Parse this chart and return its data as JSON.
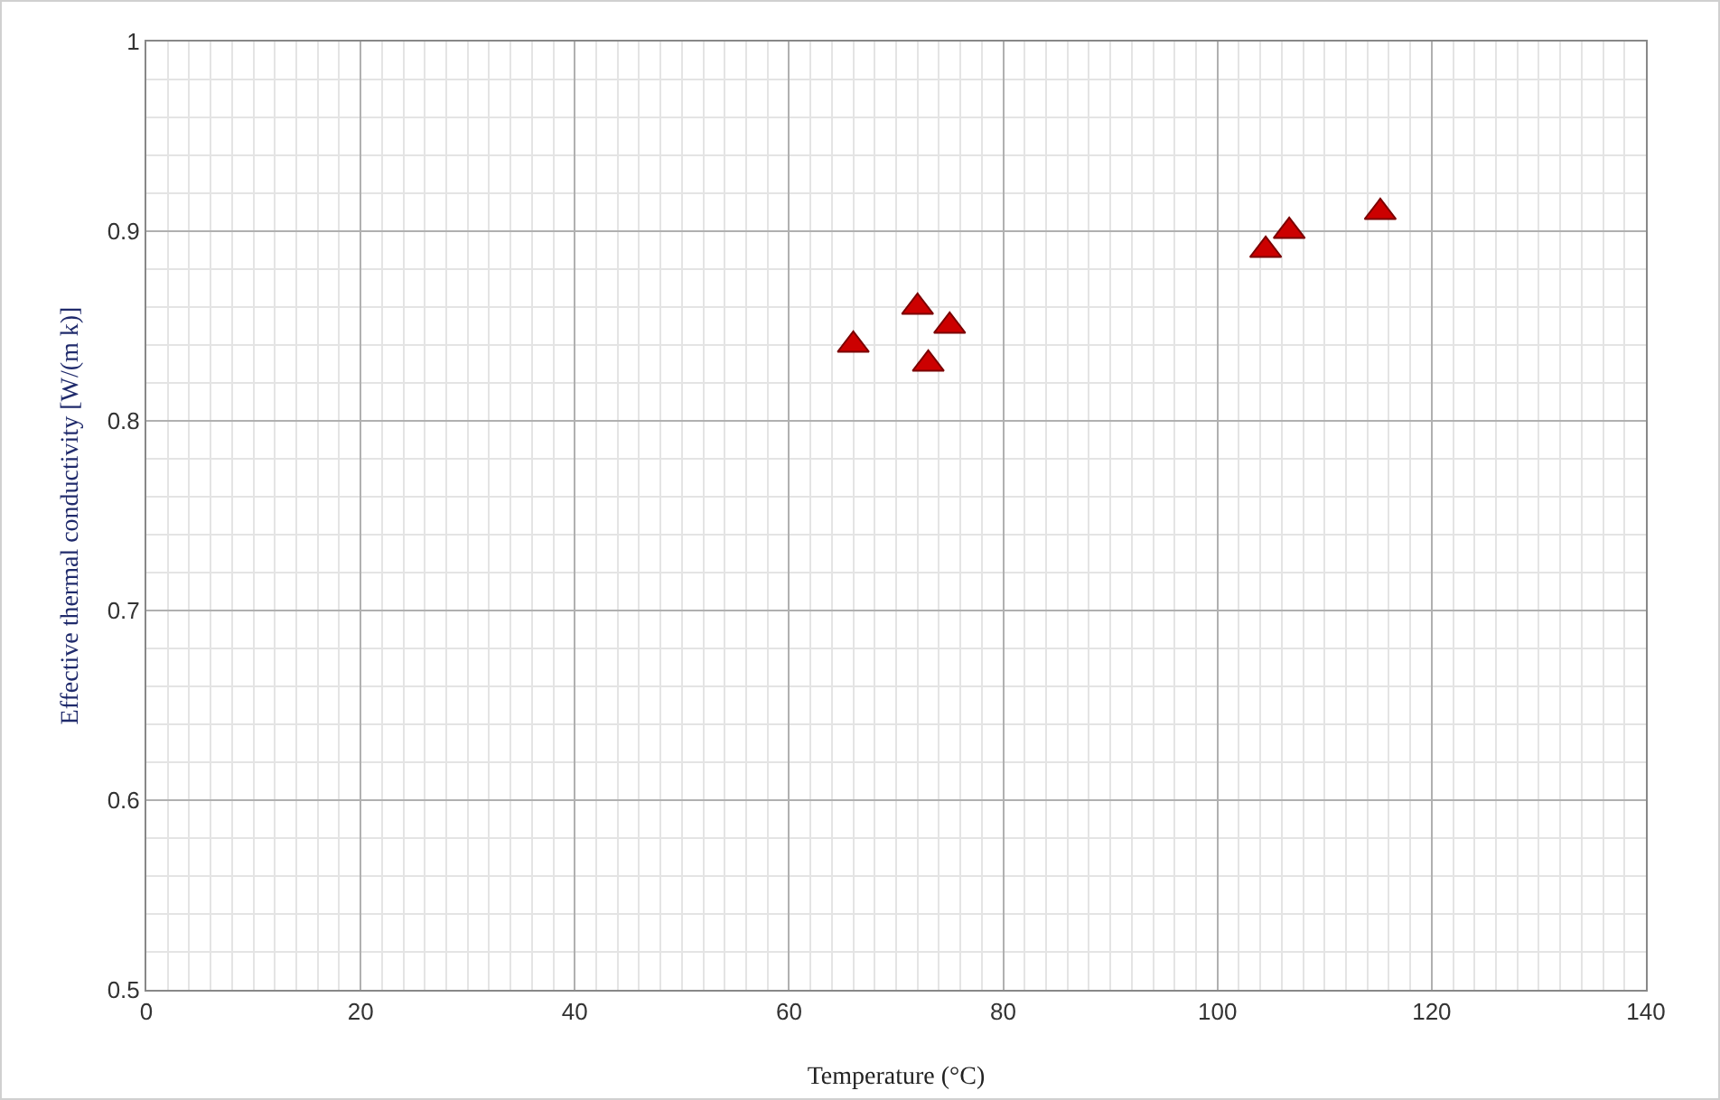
{
  "chart_data": {
    "type": "scatter",
    "xlabel": "Temperature (°C)",
    "ylabel": "Effective thermal conductivity [W/(m k)]",
    "x": [
      66,
      72,
      73,
      75,
      104.5,
      106.7,
      115.2
    ],
    "series": [
      {
        "color": "#cc0000",
        "values": [
          0.84,
          0.86,
          0.83,
          0.85,
          0.89,
          0.9,
          0.91
        ]
      }
    ],
    "xlim": [
      0,
      140
    ],
    "xticks": [
      0,
      20,
      40,
      60,
      80,
      100,
      120,
      140
    ],
    "ylim": [
      0.5,
      1
    ],
    "yticks": [
      0.5,
      0.6,
      0.7,
      0.8,
      0.9,
      1
    ],
    "grid": true,
    "marker": "triangle"
  }
}
